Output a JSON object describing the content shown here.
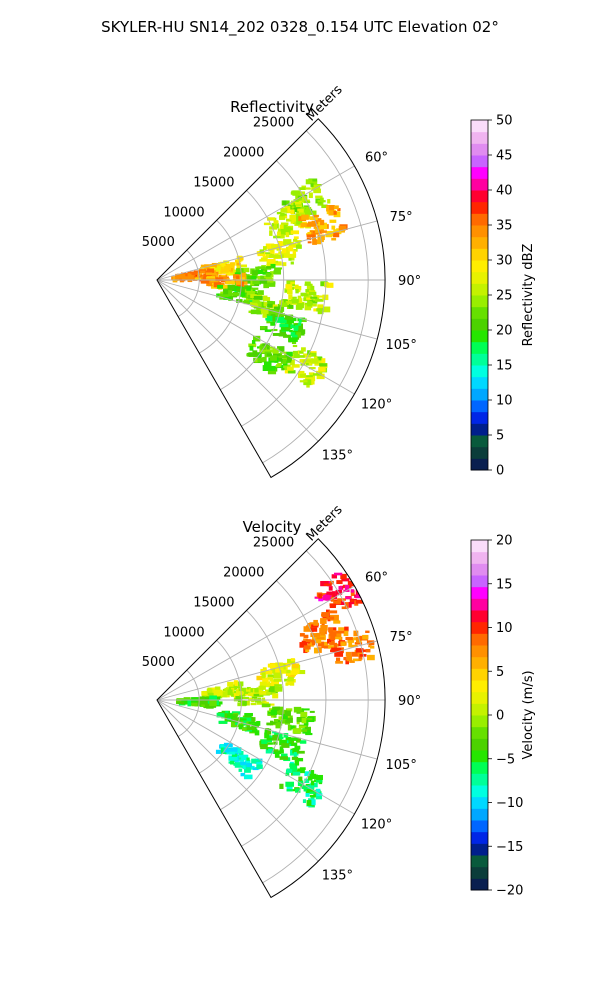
{
  "figure": {
    "suptitle": "SKYLER-HU  SN14_202  0328_0.154 UTC Elevation 02°"
  },
  "chart_data": [
    {
      "type": "heatmap",
      "projection": "polar-sector",
      "title": "Reflectivity",
      "radial_label": "Meters",
      "range_ticks": [
        5000,
        10000,
        15000,
        20000,
        25000
      ],
      "range_tick_labels": [
        "5000",
        "10000",
        "15000",
        "20000",
        "25000"
      ],
      "range_max": 27000,
      "azimuth_range": [
        45,
        150
      ],
      "azimuth_ticks": [
        60,
        75,
        90,
        105,
        120,
        135
      ],
      "azimuth_tick_labels": [
        "60°",
        "75°",
        "90°",
        "105°",
        "120°",
        "135°"
      ],
      "grid": true,
      "colorbar": {
        "label": "Reflectivity dBZ",
        "min": 0,
        "max": 50,
        "ticks": [
          0,
          5,
          10,
          15,
          20,
          25,
          30,
          35,
          40,
          45,
          50
        ],
        "tick_labels": [
          "0",
          "5",
          "10",
          "15",
          "20",
          "25",
          "30",
          "35",
          "40",
          "45",
          "50"
        ],
        "colors": [
          "#0a1f4f",
          "#0b3d3a",
          "#085a3c",
          "#001f8c",
          "#0026e6",
          "#0066ff",
          "#00a7ff",
          "#00d8ff",
          "#00ffe0",
          "#00ff99",
          "#00ff55",
          "#26e600",
          "#4cd200",
          "#66e000",
          "#99ee00",
          "#c4f200",
          "#e8f200",
          "#ffee00",
          "#ffd300",
          "#ffb000",
          "#ff9000",
          "#ff6a00",
          "#ff2600",
          "#ff0030",
          "#ff00a0",
          "#ff00ff",
          "#c864ff",
          "#e08cf0",
          "#f0b4f0",
          "#fadcfa"
        ]
      },
      "echo_cells": [
        {
          "az": 62,
          "r": 20000,
          "value": 24
        },
        {
          "az": 66,
          "r": 17000,
          "value": 26
        },
        {
          "az": 72,
          "r": 21000,
          "value": 33
        },
        {
          "az": 78,
          "r": 15000,
          "value": 27
        },
        {
          "az": 80,
          "r": 8000,
          "value": 30
        },
        {
          "az": 84,
          "r": 4500,
          "value": 34
        },
        {
          "az": 88,
          "r": 12000,
          "value": 22
        },
        {
          "az": 92,
          "r": 8000,
          "value": 33
        },
        {
          "az": 96,
          "r": 18000,
          "value": 26
        },
        {
          "az": 100,
          "r": 10000,
          "value": 21
        },
        {
          "az": 104,
          "r": 14000,
          "value": 24
        },
        {
          "az": 110,
          "r": 16000,
          "value": 20
        },
        {
          "az": 120,
          "r": 20000,
          "value": 26
        },
        {
          "az": 124,
          "r": 16000,
          "value": 21
        }
      ]
    },
    {
      "type": "heatmap",
      "projection": "polar-sector",
      "title": "Velocity",
      "radial_label": "Meters",
      "range_ticks": [
        5000,
        10000,
        15000,
        20000,
        25000
      ],
      "range_tick_labels": [
        "5000",
        "10000",
        "15000",
        "20000",
        "25000"
      ],
      "range_max": 27000,
      "azimuth_range": [
        45,
        150
      ],
      "azimuth_ticks": [
        60,
        75,
        90,
        105,
        120,
        135
      ],
      "azimuth_tick_labels": [
        "60°",
        "75°",
        "90°",
        "105°",
        "120°",
        "135°"
      ],
      "grid": true,
      "colorbar": {
        "label": "Velocity (m/s)",
        "min": -20,
        "max": 20,
        "ticks": [
          -20,
          -15,
          -10,
          -5,
          0,
          5,
          10,
          15,
          20
        ],
        "tick_labels": [
          "−20",
          "−15",
          "−10",
          "−5",
          "0",
          "5",
          "10",
          "15",
          "20"
        ],
        "colors": [
          "#0a1f4f",
          "#0b3d3a",
          "#085a3c",
          "#001f8c",
          "#0026e6",
          "#0066ff",
          "#00a7ff",
          "#00d8ff",
          "#00ffe0",
          "#00ff99",
          "#00ff55",
          "#26e600",
          "#4cd200",
          "#66e000",
          "#99ee00",
          "#c4f200",
          "#e8f200",
          "#ffee00",
          "#ffd300",
          "#ffb000",
          "#ff9000",
          "#ff6a00",
          "#ff2600",
          "#ff0030",
          "#ff00a0",
          "#ff00ff",
          "#c864ff",
          "#e08cf0",
          "#f0b4f0",
          "#fadcfa"
        ]
      },
      "echo_cells": [
        {
          "az": 60,
          "r": 25000,
          "value": 11
        },
        {
          "az": 68,
          "r": 21000,
          "value": 8
        },
        {
          "az": 74,
          "r": 24000,
          "value": 8
        },
        {
          "az": 78,
          "r": 15000,
          "value": 2
        },
        {
          "az": 82,
          "r": 8000,
          "value": 1
        },
        {
          "az": 88,
          "r": 12000,
          "value": 0
        },
        {
          "az": 92,
          "r": 5000,
          "value": -4
        },
        {
          "az": 98,
          "r": 16000,
          "value": -3
        },
        {
          "az": 104,
          "r": 10000,
          "value": -4
        },
        {
          "az": 110,
          "r": 16000,
          "value": -5
        },
        {
          "az": 120,
          "r": 20000,
          "value": -6
        },
        {
          "az": 126,
          "r": 12000,
          "value": -8
        }
      ]
    }
  ]
}
